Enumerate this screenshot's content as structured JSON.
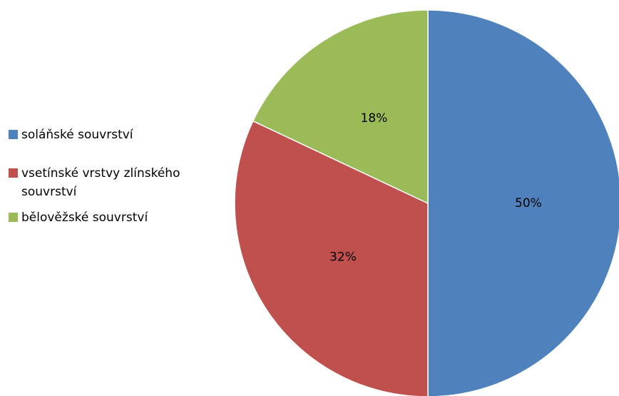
{
  "chart_data": {
    "type": "pie",
    "categories": [
      "soláňské souvrství",
      "vsetínské vrstvy zlínského souvrství",
      "bělověžské souvrství"
    ],
    "values": [
      50,
      32,
      18
    ],
    "value_labels": [
      "50%",
      "32%",
      "18%"
    ],
    "colors": [
      "#4f81bd",
      "#c0504d",
      "#9bbb59"
    ],
    "legend": "left"
  }
}
